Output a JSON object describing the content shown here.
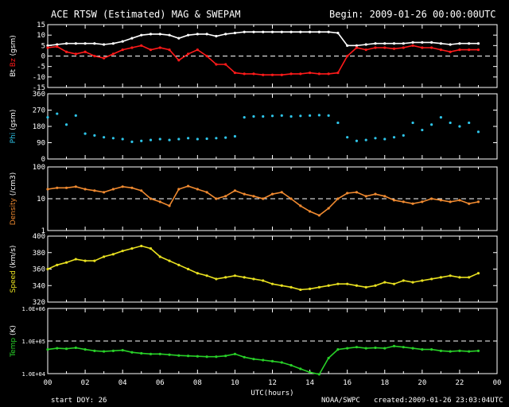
{
  "header": {
    "title": "ACE RTSW (Estimated) MAG & SWEPAM",
    "begin": "Begin: 2009-01-26 00:00:00UTC"
  },
  "footer": {
    "start_doy": "start DOY: 26",
    "source": "NOAA/SWPC",
    "created": "created:2009-01-26 23:03:04UTC"
  },
  "colors": {
    "background": "#000000",
    "frame": "#ffffff",
    "bt": "#ffffff",
    "bz": "#ff1a1a",
    "phi": "#2ec4e8",
    "density": "#f08a30",
    "speed": "#e8e020",
    "temp": "#28d028"
  },
  "chart_data": [
    {
      "type": "line",
      "panel": "mag",
      "ylabel_parts": [
        "Bt",
        "Bz",
        "(gsm)"
      ],
      "ylim": [
        -15,
        15
      ],
      "yticks": [
        -15,
        -10,
        -5,
        0,
        5,
        10,
        15
      ],
      "ytick_labels": [
        "-15",
        "-10",
        "-5",
        "0",
        "5",
        "10",
        "15"
      ],
      "dashed_zero_line": 0,
      "x": [
        0,
        0.5,
        1,
        1.5,
        2,
        2.5,
        3,
        3.5,
        4,
        4.5,
        5,
        5.5,
        6,
        6.5,
        7,
        7.5,
        8,
        8.5,
        9,
        9.5,
        10,
        10.5,
        11,
        11.5,
        12,
        12.5,
        13,
        13.5,
        14,
        14.5,
        15,
        15.5,
        16,
        16.5,
        17,
        17.5,
        18,
        18.5,
        19,
        19.5,
        20,
        20.5,
        21,
        21.5,
        22,
        22.5,
        23
      ],
      "series": [
        {
          "name": "Bt",
          "color_key": "bt",
          "values": [
            5,
            5.5,
            6,
            6,
            6,
            6,
            5.5,
            6,
            7,
            8.5,
            10,
            10.5,
            10.5,
            10,
            8.5,
            10,
            10.5,
            10.5,
            9.5,
            10.5,
            11,
            11.5,
            11.5,
            11.5,
            11.5,
            11.5,
            11.5,
            11.5,
            11.5,
            11.5,
            11.5,
            11,
            5,
            5,
            5.5,
            6,
            6,
            6,
            6,
            6.5,
            6.5,
            6.5,
            6,
            5.5,
            6,
            6,
            6
          ]
        },
        {
          "name": "Bz",
          "color_key": "bz",
          "values": [
            4,
            4.5,
            2,
            1,
            2,
            0,
            -1,
            1,
            3,
            4,
            5,
            3,
            4,
            3,
            -2,
            1,
            3,
            0,
            -4,
            -4,
            -8,
            -8.5,
            -8.5,
            -9,
            -9,
            -9,
            -8.5,
            -8.5,
            -8,
            -8.5,
            -8.5,
            -8,
            0,
            4,
            3,
            4,
            4,
            3.5,
            4,
            5,
            4,
            4,
            3,
            2,
            3,
            3,
            3
          ]
        }
      ]
    },
    {
      "type": "scatter",
      "panel": "phi",
      "ylabel_parts": [
        "Phi",
        "(gsm)"
      ],
      "ylim": [
        0,
        360
      ],
      "yticks": [
        0,
        90,
        180,
        270,
        360
      ],
      "ytick_labels": [
        "0",
        "90",
        "180",
        "270",
        "360"
      ],
      "x": [
        0,
        0.5,
        1,
        1.5,
        2,
        2.5,
        3,
        3.5,
        4,
        4.5,
        5,
        5.5,
        6,
        6.5,
        7,
        7.5,
        8,
        8.5,
        9,
        9.5,
        10,
        10.5,
        11,
        11.5,
        12,
        12.5,
        13,
        13.5,
        14,
        14.5,
        15,
        15.5,
        16,
        16.5,
        17,
        17.5,
        18,
        18.5,
        19,
        19.5,
        20,
        20.5,
        21,
        21.5,
        22,
        22.5,
        23
      ],
      "series": [
        {
          "name": "Phi",
          "color_key": "phi",
          "values": [
            230,
            250,
            190,
            240,
            140,
            130,
            120,
            115,
            110,
            95,
            100,
            105,
            110,
            105,
            110,
            115,
            110,
            112,
            115,
            118,
            125,
            230,
            235,
            235,
            238,
            240,
            235,
            238,
            240,
            242,
            240,
            200,
            120,
            100,
            105,
            115,
            110,
            120,
            130,
            200,
            160,
            190,
            230,
            200,
            180,
            200,
            150
          ]
        }
      ]
    },
    {
      "type": "line",
      "panel": "density",
      "ylabel_parts": [
        "Density",
        "(/cm3)"
      ],
      "yscale": "log",
      "ylim": [
        1,
        100
      ],
      "yticks": [
        1,
        10,
        100
      ],
      "ytick_labels": [
        "1",
        "10",
        "100"
      ],
      "dashed_line": 10,
      "x": [
        0,
        0.5,
        1,
        1.5,
        2,
        2.5,
        3,
        3.5,
        4,
        4.5,
        5,
        5.5,
        6,
        6.5,
        7,
        7.5,
        8,
        8.5,
        9,
        9.5,
        10,
        10.5,
        11,
        11.5,
        12,
        12.5,
        13,
        13.5,
        14,
        14.5,
        15,
        15.5,
        16,
        16.5,
        17,
        17.5,
        18,
        18.5,
        19,
        19.5,
        20,
        20.5,
        21,
        21.5,
        22,
        22.5,
        23
      ],
      "series": [
        {
          "name": "Density",
          "color_key": "density",
          "values": [
            20,
            22,
            22,
            24,
            20,
            18,
            16,
            20,
            24,
            22,
            18,
            10,
            8,
            6,
            20,
            25,
            20,
            16,
            10,
            12,
            18,
            14,
            12,
            10,
            14,
            16,
            10,
            6,
            4,
            3,
            5,
            10,
            15,
            16,
            12,
            14,
            12,
            9,
            8,
            7,
            8,
            10,
            9,
            8,
            9,
            7,
            8
          ]
        }
      ]
    },
    {
      "type": "line",
      "panel": "speed",
      "ylabel_parts": [
        "Speed",
        "(km/s)"
      ],
      "ylim": [
        320,
        400
      ],
      "yticks": [
        320,
        340,
        360,
        380,
        400
      ],
      "ytick_labels": [
        "320",
        "340",
        "360",
        "380",
        "400"
      ],
      "x": [
        0,
        0.5,
        1,
        1.5,
        2,
        2.5,
        3,
        3.5,
        4,
        4.5,
        5,
        5.5,
        6,
        6.5,
        7,
        7.5,
        8,
        8.5,
        9,
        9.5,
        10,
        10.5,
        11,
        11.5,
        12,
        12.5,
        13,
        13.5,
        14,
        14.5,
        15,
        15.5,
        16,
        16.5,
        17,
        17.5,
        18,
        18.5,
        19,
        19.5,
        20,
        20.5,
        21,
        21.5,
        22,
        22.5,
        23
      ],
      "series": [
        {
          "name": "Speed",
          "color_key": "speed",
          "values": [
            360,
            365,
            368,
            372,
            370,
            370,
            375,
            378,
            382,
            385,
            388,
            385,
            375,
            370,
            365,
            360,
            355,
            352,
            348,
            350,
            352,
            350,
            348,
            346,
            342,
            340,
            338,
            335,
            336,
            338,
            340,
            342,
            342,
            340,
            338,
            340,
            344,
            342,
            346,
            344,
            346,
            348,
            350,
            352,
            350,
            350,
            355
          ]
        }
      ]
    },
    {
      "type": "line",
      "panel": "temp",
      "ylabel_parts": [
        "Temp",
        "(K)"
      ],
      "yscale": "log",
      "ylim": [
        10000,
        1000000
      ],
      "yticks": [
        10000,
        100000,
        1000000
      ],
      "ytick_labels": [
        "1.0E+04",
        "1.0E+05",
        "1.0E+06"
      ],
      "dashed_line": 100000,
      "x": [
        0,
        0.5,
        1,
        1.5,
        2,
        2.5,
        3,
        3.5,
        4,
        4.5,
        5,
        5.5,
        6,
        6.5,
        7,
        7.5,
        8,
        8.5,
        9,
        9.5,
        10,
        10.5,
        11,
        11.5,
        12,
        12.5,
        13,
        13.5,
        14,
        14.5,
        15,
        15.5,
        16,
        16.5,
        17,
        17.5,
        18,
        18.5,
        19,
        19.5,
        20,
        20.5,
        21,
        21.5,
        22,
        22.5,
        23
      ],
      "series": [
        {
          "name": "Temp",
          "color_key": "temp",
          "values": [
            55000,
            60000,
            58000,
            62000,
            55000,
            50000,
            48000,
            50000,
            52000,
            45000,
            42000,
            40000,
            40000,
            38000,
            36000,
            35000,
            34000,
            33000,
            33000,
            35000,
            40000,
            32000,
            28000,
            26000,
            24000,
            22000,
            18000,
            14000,
            11000,
            9500,
            30000,
            55000,
            60000,
            65000,
            60000,
            62000,
            60000,
            70000,
            65000,
            60000,
            55000,
            55000,
            50000,
            48000,
            50000,
            48000,
            50000
          ]
        }
      ]
    }
  ],
  "x_axis": {
    "xlim": [
      0,
      24
    ],
    "tick_labels": [
      "00",
      "02",
      "04",
      "06",
      "08",
      "10",
      "12",
      "14",
      "16",
      "18",
      "20",
      "22",
      "00"
    ],
    "xlabel": "UTC(hours)"
  }
}
